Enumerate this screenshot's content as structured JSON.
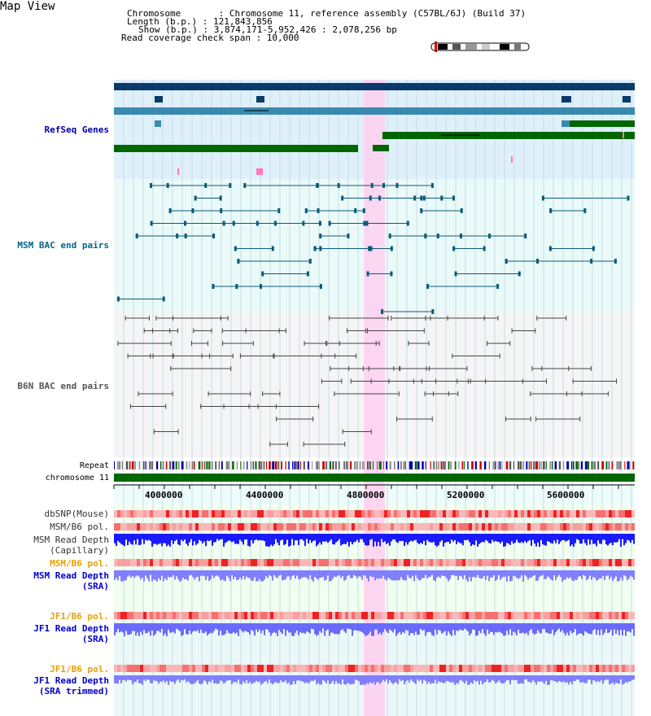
{
  "page_title": "Map View",
  "info": {
    "chromosome": "Chromosome       : Chromosome 11, reference assembly (C57BL/6J) (Build 37)",
    "length": "Length (b.p.) : 121,843,856",
    "show": "Show (b.p.) : 3,874,171-5,952,426 : 2,078,256 bp",
    "coverage": "Read coverage check span : 10,000"
  },
  "tracks": {
    "refseq": "RefSeq Genes",
    "msm_bac": "MSM BAC end pairs",
    "b6n_bac": "B6N BAC end pairs",
    "repeat": "Repeat",
    "chromosome": "chromosome 11",
    "dbsnp": "dbSNP(Mouse)",
    "msm_b6_pol_1": "MSM/B6 pol.",
    "msm_depth_cap": "MSM Read Depth\n(Capillary)",
    "msm_b6_pol_2": "MSM/B6 pol.",
    "msm_depth_sra": "MSM Read Depth\n(SRA)",
    "jf1_b6_pol_1": "JF1/B6 pol.",
    "jf1_depth_sra": "JF1 Read Depth\n(SRA)",
    "jf1_b6_pol_2": "JF1/B6 pol.",
    "jf1_depth_trim": "JF1 Read Depth\n(SRA trimmed)"
  },
  "axis_ticks": [
    "4000000",
    "4400000",
    "4800000",
    "5200000",
    "5600000"
  ],
  "colors": {
    "refseq_label": "#0000aa",
    "msm_label": "#006688",
    "b6n_label": "#555555",
    "orange_label": "#e8a000",
    "blue_label": "#0000cc",
    "highlight": "#ffd0f0"
  }
}
